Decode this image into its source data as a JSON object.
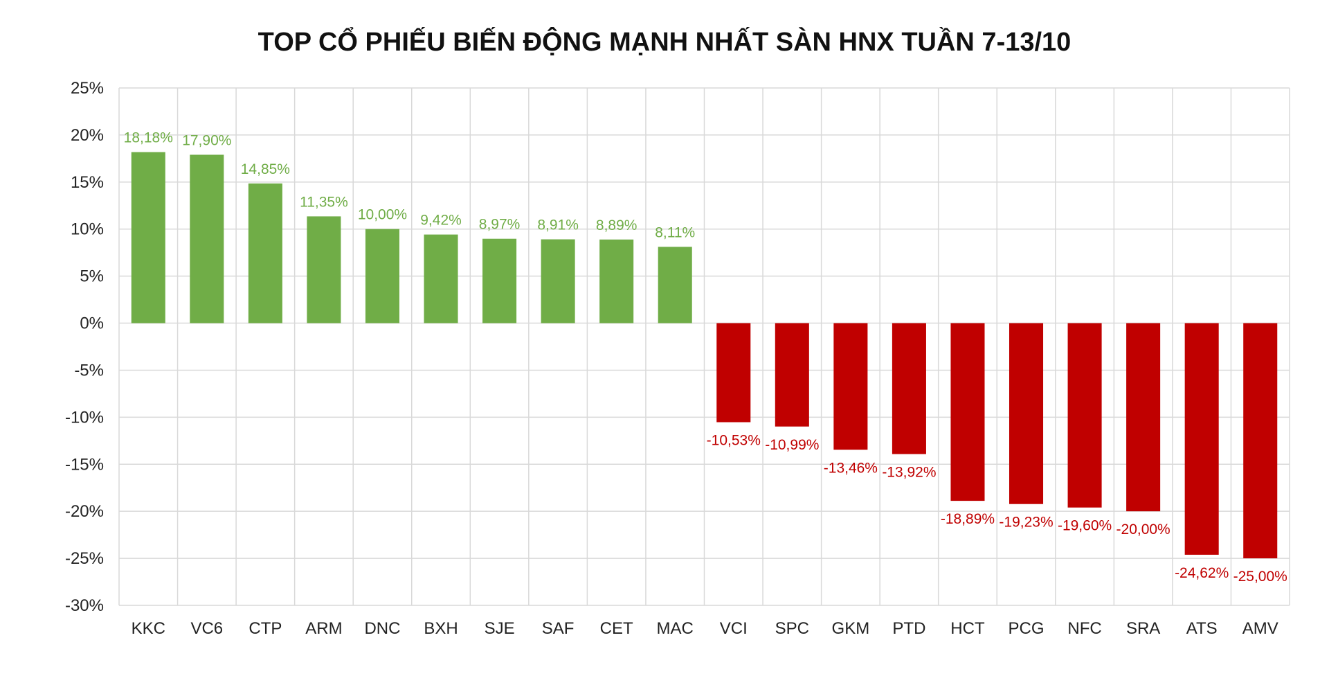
{
  "chart_data": {
    "type": "bar",
    "title": "TOP CỔ PHIẾU BIẾN ĐỘNG MẠNH NHẤT SÀN HNX TUẦN 7-13/10",
    "xlabel": "",
    "ylabel": "",
    "categories": [
      "KKC",
      "VC6",
      "CTP",
      "ARM",
      "DNC",
      "BXH",
      "SJE",
      "SAF",
      "CET",
      "MAC",
      "VCI",
      "SPC",
      "GKM",
      "PTD",
      "HCT",
      "PCG",
      "NFC",
      "SRA",
      "ATS",
      "AMV"
    ],
    "values": [
      18.18,
      17.9,
      14.85,
      11.35,
      10.0,
      9.42,
      8.97,
      8.91,
      8.89,
      8.11,
      -10.53,
      -10.99,
      -13.46,
      -13.92,
      -18.89,
      -19.23,
      -19.6,
      -20.0,
      -24.62,
      -25.0
    ],
    "data_labels": [
      "18,18%",
      "17,90%",
      "14,85%",
      "11,35%",
      "10,00%",
      "9,42%",
      "8,97%",
      "8,91%",
      "8,89%",
      "8,11%",
      "-10,53%",
      "-10,99%",
      "-13,46%",
      "-13,92%",
      "-18,89%",
      "-19,23%",
      "-19,60%",
      "-20,00%",
      "-24,62%",
      "-25,00%"
    ],
    "ylim": [
      -30,
      25
    ],
    "yticks": [
      25,
      20,
      15,
      10,
      5,
      0,
      -5,
      -10,
      -15,
      -20,
      -25,
      -30
    ],
    "ytick_labels": [
      "25%",
      "20%",
      "15%",
      "10%",
      "5%",
      "0%",
      "-5%",
      "-10%",
      "-15%",
      "-20%",
      "-25%",
      "-30%"
    ],
    "grid": true,
    "legend": "none",
    "colors": {
      "positive": "#70ad47",
      "negative": "#c00000",
      "grid": "#d9d9d9"
    }
  }
}
